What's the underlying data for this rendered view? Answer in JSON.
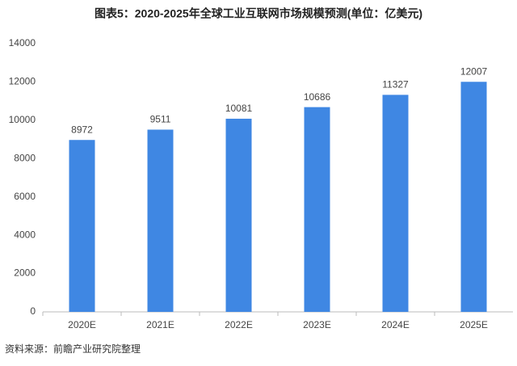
{
  "chart_data": {
    "type": "bar",
    "title": "图表5：2020-2025年全球工业互联网市场规模预测(单位：亿美元)",
    "categories": [
      "2020E",
      "2021E",
      "2022E",
      "2023E",
      "2024E",
      "2025E"
    ],
    "values": [
      8972,
      9511,
      10081,
      10686,
      11327,
      12007
    ],
    "color": "#3f87e3",
    "ylim": [
      0,
      14000
    ],
    "yticks": [
      0,
      2000,
      4000,
      6000,
      8000,
      10000,
      12000,
      14000
    ],
    "grid": false,
    "source": "资料来源：前瞻产业研究院整理"
  }
}
